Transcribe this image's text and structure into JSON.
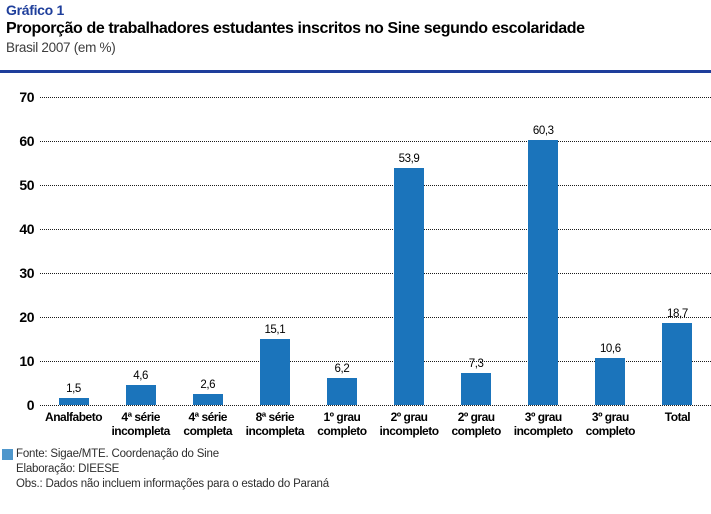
{
  "header": {
    "kicker": "Gráfico 1",
    "title": "Proporção de trabalhadores estudantes inscritos no Sine segundo escolaridade",
    "subtitle": "Brasil 2007 (em %)"
  },
  "colors": {
    "accent_blue": "#1e3e9b",
    "bar_blue": "#1b74bb",
    "legend_blue": "#4f97cc",
    "grid_dot": "#1c1c1c"
  },
  "chart_data": {
    "type": "bar",
    "title": "Proporção de trabalhadores estudantes inscritos no Sine segundo escolaridade",
    "subtitle": "Brasil 2007 (em %)",
    "categories": [
      "Analfabeto",
      "4ª série\nincompleta",
      "4ª série\ncompleta",
      "8ª série\nincompleta",
      "1º grau\ncompleto",
      "2º grau\nincompleto",
      "2º grau\ncompleto",
      "3º grau\nincompleto",
      "3º grau\ncompleto",
      "Total"
    ],
    "values": [
      1.5,
      4.6,
      2.6,
      15.1,
      6.2,
      53.9,
      7.3,
      60.3,
      10.6,
      18.7
    ],
    "value_labels": [
      "1,5",
      "4,6",
      "2,6",
      "15,1",
      "6,2",
      "53,9",
      "7,3",
      "60,3",
      "10,6",
      "18,7"
    ],
    "xlabel": "",
    "ylabel": "",
    "ylim": [
      0,
      70
    ],
    "yticks": [
      0,
      10,
      20,
      30,
      40,
      50,
      60,
      70
    ],
    "grid": "horizontal dotted",
    "legend_position": "none",
    "bar_color": "#1b74bb"
  },
  "footer": {
    "lines": [
      "Fonte: Sigae/MTE. Coordenação do Sine",
      "Elaboração: DIEESE",
      "Obs.: Dados não incluem informações para o estado do Paraná"
    ]
  }
}
